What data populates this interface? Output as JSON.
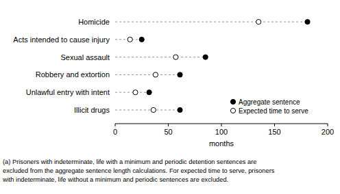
{
  "chart_data": {
    "type": "dot",
    "orientation": "horizontal",
    "categories": [
      "Homicide",
      "Acts intended to cause injury",
      "Sexual assault",
      "Robbery and extortion",
      "Unlawful entry with intent",
      "Illicit drugs"
    ],
    "series": [
      {
        "name": "Aggregate sentence",
        "color": "#000000",
        "marker": "filled-circle",
        "values": [
          181,
          25,
          85,
          61,
          32,
          61
        ]
      },
      {
        "name": "Expected time to serve",
        "color": "#000000",
        "marker": "open-circle",
        "values": [
          135,
          14,
          57,
          38,
          19,
          36
        ]
      }
    ],
    "xlabel": "months",
    "xlim": [
      0,
      200
    ],
    "xticks": [
      0,
      50,
      100,
      150,
      200
    ],
    "grid": false,
    "legend": "lower right",
    "notes": [
      "(a) Prisoners with indeterminate, life with a minimum and periodic detention sentences are",
      "excluded from the aggregate sentence length calculations. For expected time to serve, prisoners",
      "with indeterminate, life without a minimum and periodic sentences are excluded."
    ]
  }
}
